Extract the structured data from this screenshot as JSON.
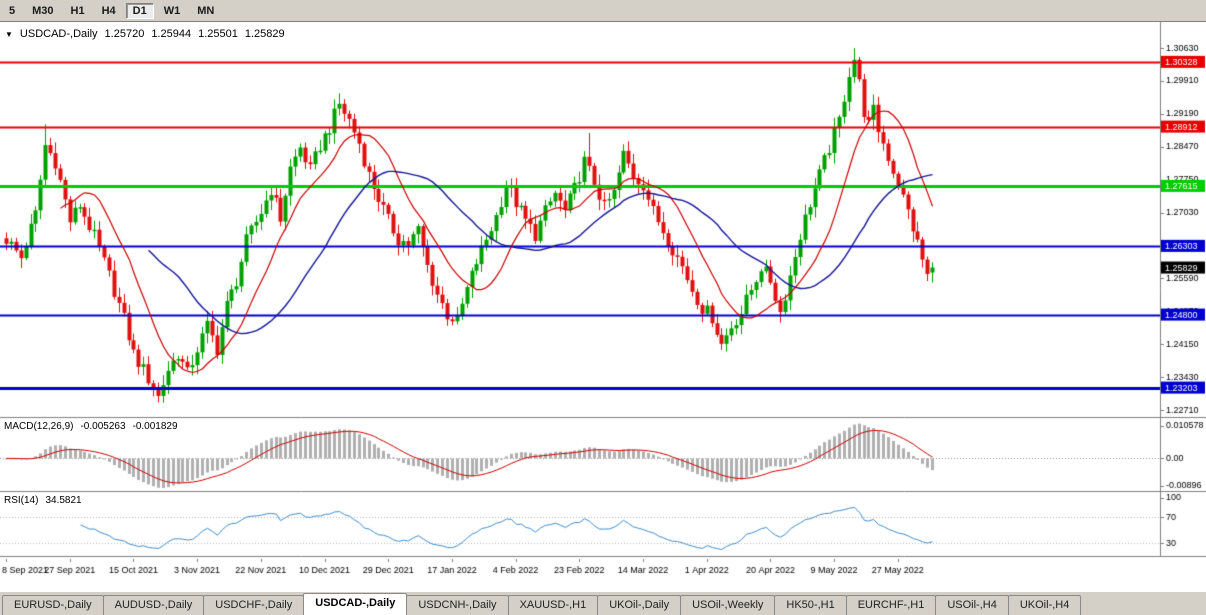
{
  "colors": {
    "window_bg": "#d4d0c8",
    "chart_bg": "#ffffff",
    "up": "#00a000",
    "down": "#e01010",
    "axis_text": "#000000"
  },
  "toolbar": {
    "timeframes": [
      {
        "label": "5",
        "active": false
      },
      {
        "label": "M30",
        "active": false
      },
      {
        "label": "H1",
        "active": false
      },
      {
        "label": "H4",
        "active": false
      },
      {
        "label": "D1",
        "active": true
      },
      {
        "label": "W1",
        "active": false
      },
      {
        "label": "MN",
        "active": false
      }
    ]
  },
  "chart_header": {
    "symbol": "USDCAD-,Daily",
    "open": "1.25720",
    "high": "1.25944",
    "low": "1.25501",
    "close": "1.25829"
  },
  "indicators": {
    "macd": {
      "title": "MACD(12,26,9)",
      "value_main": "-0.005263",
      "value_signal": "-0.001829"
    },
    "rsi": {
      "title": "RSI(14)",
      "value": "34.5821"
    }
  },
  "tabs": [
    {
      "label": "EURUSD-,Daily",
      "active": false
    },
    {
      "label": "AUDUSD-,Daily",
      "active": false
    },
    {
      "label": "USDCHF-,Daily",
      "active": false
    },
    {
      "label": "USDCAD-,Daily",
      "active": true
    },
    {
      "label": "USDCNH-,Daily",
      "active": false
    },
    {
      "label": "XAUUSD-,H1",
      "active": false
    },
    {
      "label": "UKOil-,Daily",
      "active": false
    },
    {
      "label": "USOil-,Weekly",
      "active": false
    },
    {
      "label": "HK50-,H1",
      "active": false
    },
    {
      "label": "EURCHF-,H1",
      "active": false
    },
    {
      "label": "USOil-,H4",
      "active": false
    },
    {
      "label": "UKOil-,H4",
      "active": false
    }
  ],
  "chart_data": {
    "type": "candlestick",
    "symbol": "USDCAD",
    "timeframe": "Daily",
    "n_bars": 190,
    "ylim": [
      1.2256,
      1.312
    ],
    "noise_amp": 0.0016,
    "wick_amp": 0.002,
    "anchors": [
      [
        0,
        1.2645
      ],
      [
        3,
        1.2605
      ],
      [
        6,
        1.27
      ],
      [
        8,
        1.285
      ],
      [
        10,
        1.2815
      ],
      [
        13,
        1.2685
      ],
      [
        15,
        1.272
      ],
      [
        18,
        1.265
      ],
      [
        21,
        1.2565
      ],
      [
        24,
        1.247
      ],
      [
        26,
        1.2395
      ],
      [
        29,
        1.234
      ],
      [
        31,
        1.23
      ],
      [
        33,
        1.236
      ],
      [
        35,
        1.2395
      ],
      [
        37,
        1.235
      ],
      [
        39,
        1.2405
      ],
      [
        41,
        1.2455
      ],
      [
        43,
        1.2405
      ],
      [
        45,
        1.25
      ],
      [
        47,
        1.2555
      ],
      [
        49,
        1.264
      ],
      [
        52,
        1.2705
      ],
      [
        54,
        1.2755
      ],
      [
        56,
        1.269
      ],
      [
        58,
        1.28
      ],
      [
        60,
        1.2845
      ],
      [
        62,
        1.2795
      ],
      [
        64,
        1.285
      ],
      [
        66,
        1.289
      ],
      [
        68,
        1.294
      ],
      [
        70,
        1.2905
      ],
      [
        72,
        1.2855
      ],
      [
        74,
        1.2785
      ],
      [
        76,
        1.2735
      ],
      [
        78,
        1.2685
      ],
      [
        80,
        1.2645
      ],
      [
        82,
        1.2635
      ],
      [
        84,
        1.2665
      ],
      [
        86,
        1.2585
      ],
      [
        88,
        1.2525
      ],
      [
        90,
        1.248
      ],
      [
        92,
        1.2465
      ],
      [
        94,
        1.2535
      ],
      [
        96,
        1.2595
      ],
      [
        98,
        1.2645
      ],
      [
        100,
        1.2695
      ],
      [
        102,
        1.2765
      ],
      [
        104,
        1.2725
      ],
      [
        106,
        1.2685
      ],
      [
        108,
        1.2655
      ],
      [
        110,
        1.2705
      ],
      [
        112,
        1.2745
      ],
      [
        114,
        1.2705
      ],
      [
        116,
        1.2755
      ],
      [
        118,
        1.2815
      ],
      [
        120,
        1.277
      ],
      [
        122,
        1.2715
      ],
      [
        124,
        1.2745
      ],
      [
        126,
        1.283
      ],
      [
        128,
        1.2785
      ],
      [
        130,
        1.2765
      ],
      [
        132,
        1.2705
      ],
      [
        134,
        1.2665
      ],
      [
        136,
        1.2625
      ],
      [
        138,
        1.2585
      ],
      [
        140,
        1.2535
      ],
      [
        142,
        1.2495
      ],
      [
        144,
        1.2475
      ],
      [
        146,
        1.2415
      ],
      [
        148,
        1.2455
      ],
      [
        150,
        1.2485
      ],
      [
        152,
        1.2535
      ],
      [
        154,
        1.2585
      ],
      [
        156,
        1.2555
      ],
      [
        158,
        1.2485
      ],
      [
        160,
        1.2565
      ],
      [
        162,
        1.2655
      ],
      [
        164,
        1.2725
      ],
      [
        166,
        1.2785
      ],
      [
        168,
        1.2845
      ],
      [
        170,
        1.2905
      ],
      [
        172,
        1.301
      ],
      [
        173,
        1.304
      ],
      [
        174,
        1.2985
      ],
      [
        175,
        1.2925
      ],
      [
        176,
        1.2895
      ],
      [
        177,
        1.2925
      ],
      [
        178,
        1.2885
      ],
      [
        180,
        1.2825
      ],
      [
        182,
        1.2765
      ],
      [
        184,
        1.2705
      ],
      [
        186,
        1.2635
      ],
      [
        188,
        1.2565
      ],
      [
        189,
        1.2583
      ]
    ],
    "extremes": [
      {
        "index": 8,
        "high": 1.2896
      },
      {
        "index": 31,
        "low": 1.2288
      },
      {
        "index": 68,
        "high": 1.2964
      },
      {
        "index": 119,
        "high": 1.2877
      },
      {
        "index": 146,
        "low": 1.2403
      },
      {
        "index": 173,
        "high": 1.3063
      }
    ],
    "last_candle": {
      "open": 1.2572,
      "high": 1.25944,
      "low": 1.25501,
      "close": 1.25829
    },
    "ma": [
      {
        "name": "fast",
        "period": 12,
        "color": "#cc0000",
        "lw": 1.2
      },
      {
        "name": "slow",
        "period": 30,
        "color": "#151599",
        "lw": 1.4
      }
    ],
    "hlines": [
      {
        "price": 1.30328,
        "color": "#e60000",
        "width": 2,
        "label": "1.30328"
      },
      {
        "price": 1.28912,
        "color": "#e60000",
        "width": 2,
        "label": "1.28912"
      },
      {
        "price": 1.27615,
        "color": "#00cc00",
        "width": 3,
        "label": "1.27615"
      },
      {
        "price": 1.26303,
        "color": "#0000cc",
        "width": 2,
        "label": "1.26303"
      },
      {
        "price": 1.248,
        "color": "#0000cc",
        "width": 2,
        "label": "1.24800"
      },
      {
        "price": 1.23203,
        "color": "#0000cc",
        "width": 3,
        "label": "1.23203"
      }
    ],
    "price_ticks": [
      "1.30630",
      "1.29910",
      "1.29190",
      "1.28470",
      "1.27750",
      "1.27030",
      "1.25590",
      "1.24870",
      "1.24150",
      "1.23430",
      "1.22710"
    ],
    "current_price": "1.25829",
    "x_labels": [
      "8 Sep 2021",
      "27 Sep 2021",
      "15 Oct 2021",
      "3 Nov 2021",
      "22 Nov 2021",
      "10 Dec 2021",
      "29 Dec 2021",
      "17 Jan 2022",
      "4 Feb 2022",
      "23 Feb 2022",
      "14 Mar 2022",
      "1 Apr 2022",
      "20 Apr 2022",
      "9 May 2022",
      "27 May 2022"
    ],
    "x_label_step": 13,
    "macd": {
      "fast": 12,
      "slow": 26,
      "signal": 9,
      "ylim": [
        -0.01026,
        0.01282
      ],
      "ticks": [
        "0.010578",
        "0.00",
        "-0.00896"
      ],
      "hist_color": "#b0b0b0",
      "signal_color": "#cc0000"
    },
    "rsi": {
      "period": 14,
      "ylim": [
        10.2,
        107.6
      ],
      "ticks": [
        "100",
        "70",
        "30"
      ],
      "levels": [
        70,
        30
      ],
      "color": "#3e8ece"
    }
  }
}
